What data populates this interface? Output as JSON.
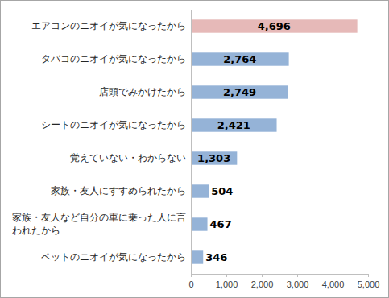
{
  "chart_data": {
    "type": "bar",
    "orientation": "horizontal",
    "categories": [
      "エアコンのニオイが気になったから",
      "タバコのニオイが気になったから",
      "店頭でみかけたから",
      "シートのニオイが気になったから",
      "覚えていない・わからない",
      "家族・友人にすすめられたから",
      "家族・友人など自分の車に乗った人に言われたから",
      "ペットのニオイが気になったから"
    ],
    "values": [
      4696,
      2764,
      2749,
      2421,
      1303,
      504,
      467,
      346
    ],
    "value_labels": [
      "4,696",
      "2,764",
      "2,749",
      "2,421",
      "1,303",
      "504",
      "467",
      "346"
    ],
    "colors": [
      "#e6b9b8",
      "#95b3d7",
      "#95b3d7",
      "#95b3d7",
      "#95b3d7",
      "#95b3d7",
      "#95b3d7",
      "#95b3d7"
    ],
    "xlim": [
      0,
      5000
    ],
    "xticks": [
      0,
      {
        "value": 1000,
        "label": "1,000"
      },
      {
        "value": 2000,
        "label": "2,000"
      },
      {
        "value": 3000,
        "label": "3,000"
      },
      {
        "value": 4000,
        "label": "4,000"
      },
      {
        "value": 5000,
        "label": "5,000"
      }
    ],
    "grid": false,
    "data_labels": true
  }
}
